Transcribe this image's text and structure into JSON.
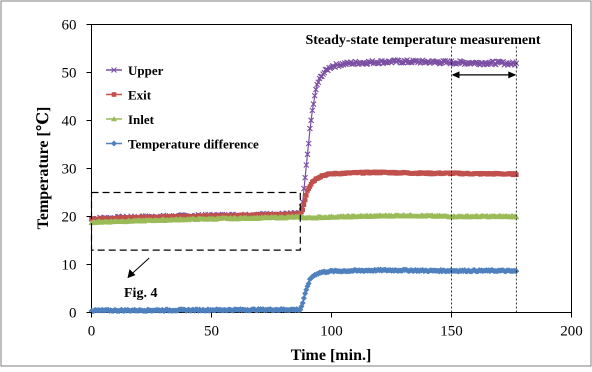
{
  "chart_data": {
    "type": "line",
    "xlabel": "Time [min.]",
    "ylabel": "Temperature [℃]",
    "xlim": [
      0,
      200
    ],
    "ylim": [
      0,
      60
    ],
    "xticks": [
      0,
      50,
      100,
      150,
      200
    ],
    "yticks": [
      0,
      10,
      20,
      30,
      40,
      50,
      60
    ],
    "grid": false,
    "legend_position": "top-left",
    "series": [
      {
        "name": "Upper",
        "color": "#7b4fa3",
        "marker": "x",
        "points": [
          [
            0,
            19.5
          ],
          [
            20,
            19.8
          ],
          [
            40,
            20.0
          ],
          [
            60,
            20.2
          ],
          [
            80,
            20.4
          ],
          [
            87,
            20.5
          ],
          [
            88,
            23
          ],
          [
            89,
            28
          ],
          [
            90,
            33
          ],
          [
            91,
            38
          ],
          [
            92,
            42
          ],
          [
            93,
            45
          ],
          [
            94,
            47.5
          ],
          [
            96,
            49.5
          ],
          [
            98,
            50.5
          ],
          [
            100,
            51.3
          ],
          [
            105,
            51.8
          ],
          [
            110,
            52.0
          ],
          [
            120,
            52.2
          ],
          [
            130,
            52.3
          ],
          [
            140,
            52.2
          ],
          [
            150,
            52.1
          ],
          [
            160,
            52.0
          ],
          [
            170,
            52.0
          ],
          [
            177,
            51.8
          ]
        ]
      },
      {
        "name": "Exit",
        "color": "#c0504d",
        "marker": "square",
        "points": [
          [
            0,
            19.5
          ],
          [
            20,
            19.8
          ],
          [
            40,
            20.0
          ],
          [
            60,
            20.2
          ],
          [
            80,
            20.4
          ],
          [
            87,
            20.5
          ],
          [
            88,
            21.5
          ],
          [
            89,
            23.5
          ],
          [
            90,
            25.5
          ],
          [
            92,
            27.2
          ],
          [
            94,
            28.0
          ],
          [
            96,
            28.5
          ],
          [
            100,
            28.9
          ],
          [
            110,
            29.1
          ],
          [
            120,
            29.2
          ],
          [
            130,
            29.1
          ],
          [
            140,
            29.0
          ],
          [
            150,
            29.0
          ],
          [
            160,
            28.9
          ],
          [
            170,
            28.9
          ],
          [
            177,
            28.8
          ]
        ]
      },
      {
        "name": "Inlet",
        "color": "#9bbb59",
        "marker": "triangle",
        "points": [
          [
            0,
            18.8
          ],
          [
            20,
            19.1
          ],
          [
            40,
            19.4
          ],
          [
            60,
            19.6
          ],
          [
            80,
            19.8
          ],
          [
            87,
            19.9
          ],
          [
            90,
            19.7
          ],
          [
            95,
            19.8
          ],
          [
            100,
            19.9
          ],
          [
            110,
            20.0
          ],
          [
            120,
            20.1
          ],
          [
            130,
            20.2
          ],
          [
            140,
            20.1
          ],
          [
            150,
            20.0
          ],
          [
            160,
            20.0
          ],
          [
            170,
            20.0
          ],
          [
            177,
            20.0
          ]
        ]
      },
      {
        "name": "Temperature difference",
        "color": "#4f81bd",
        "marker": "diamond",
        "points": [
          [
            0,
            0.4
          ],
          [
            20,
            0.45
          ],
          [
            40,
            0.5
          ],
          [
            60,
            0.55
          ],
          [
            80,
            0.6
          ],
          [
            87,
            0.6
          ],
          [
            88,
            2
          ],
          [
            89,
            3.8
          ],
          [
            90,
            5.5
          ],
          [
            91,
            6.8
          ],
          [
            92,
            7.5
          ],
          [
            94,
            8.1
          ],
          [
            96,
            8.4
          ],
          [
            100,
            8.6
          ],
          [
            110,
            8.7
          ],
          [
            120,
            8.8
          ],
          [
            130,
            8.8
          ],
          [
            140,
            8.7
          ],
          [
            150,
            8.7
          ],
          [
            160,
            8.7
          ],
          [
            170,
            8.7
          ],
          [
            177,
            8.6
          ]
        ]
      }
    ],
    "annotations": {
      "steady_state_label": "Steady-state temperature measurement",
      "steady_state_range": [
        150,
        177
      ],
      "fig4_label": "Fig. 4",
      "fig4_box": {
        "x": [
          0,
          87
        ],
        "y": [
          13,
          25
        ]
      }
    }
  }
}
